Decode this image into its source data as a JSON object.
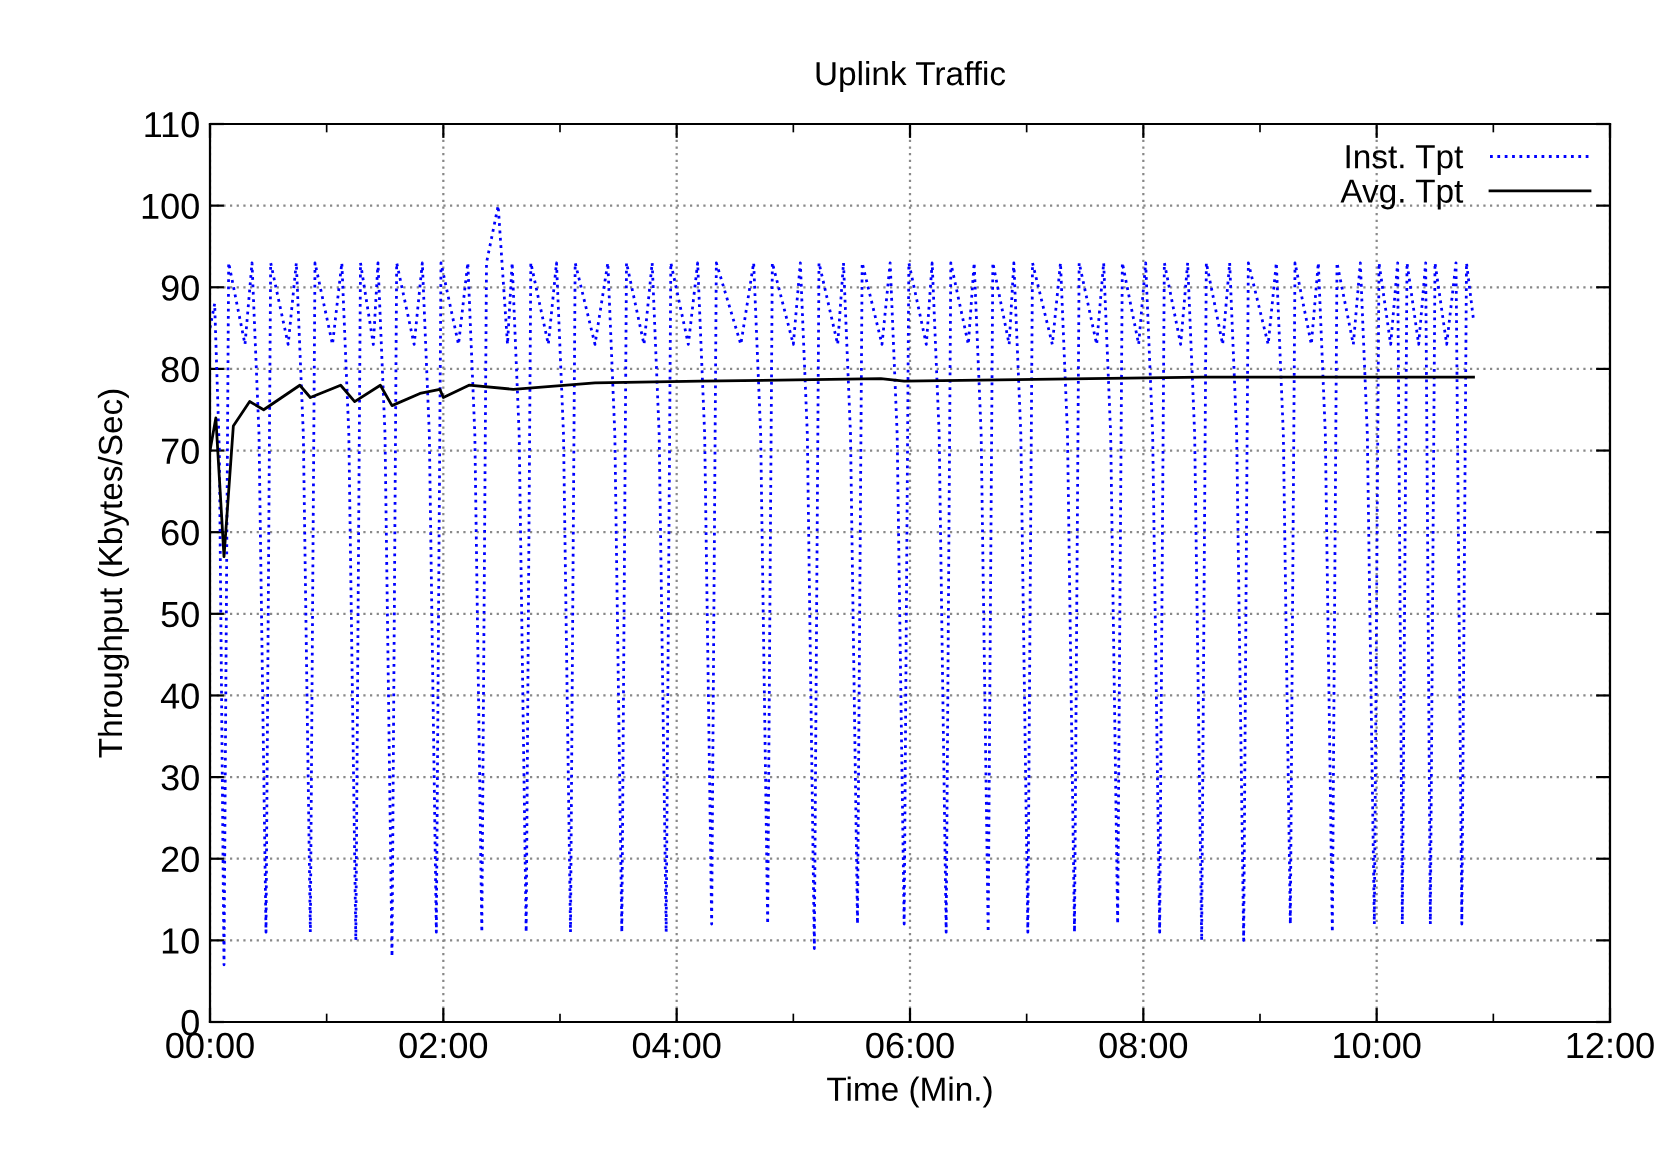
{
  "chart_data": {
    "type": "line",
    "title": "Uplink Traffic",
    "xlabel": "Time (Min.)",
    "ylabel": "Throughput (Kbytes/Sec)",
    "xlim": [
      0,
      12
    ],
    "ylim": [
      0,
      110
    ],
    "xticks": [
      {
        "value": 0,
        "label": "00:00"
      },
      {
        "value": 1,
        "label": null
      },
      {
        "value": 2,
        "label": "02:00"
      },
      {
        "value": 3,
        "label": null
      },
      {
        "value": 4,
        "label": "04:00"
      },
      {
        "value": 5,
        "label": null
      },
      {
        "value": 6,
        "label": "06:00"
      },
      {
        "value": 7,
        "label": null
      },
      {
        "value": 8,
        "label": "08:00"
      },
      {
        "value": 9,
        "label": null
      },
      {
        "value": 10,
        "label": "10:00"
      },
      {
        "value": 11,
        "label": null
      },
      {
        "value": 12,
        "label": "12:00"
      }
    ],
    "yticks": [
      0,
      10,
      20,
      30,
      40,
      50,
      60,
      70,
      80,
      90,
      100,
      110
    ],
    "grid": true,
    "legend": "top right",
    "series": [
      {
        "name": "Inst. Tpt",
        "color": "#0000ff",
        "line_style": "dotted",
        "x": [
          0,
          0.04,
          0.08,
          0.12,
          0.16,
          0.3,
          0.36,
          0.42,
          0.48,
          0.52,
          0.67,
          0.74,
          0.8,
          0.86,
          0.9,
          1.05,
          1.13,
          1.19,
          1.25,
          1.29,
          1.4,
          1.44,
          1.5,
          1.56,
          1.6,
          1.75,
          1.82,
          1.88,
          1.94,
          1.98,
          2.13,
          2.21,
          2.27,
          2.33,
          2.37,
          2.47,
          2.55,
          2.59,
          2.65,
          2.71,
          2.75,
          2.9,
          2.97,
          3.03,
          3.09,
          3.13,
          3.3,
          3.41,
          3.47,
          3.53,
          3.57,
          3.72,
          3.79,
          3.85,
          3.91,
          3.95,
          4.1,
          4.18,
          4.24,
          4.3,
          4.34,
          4.55,
          4.66,
          4.72,
          4.78,
          4.82,
          5.0,
          5.06,
          5.12,
          5.18,
          5.22,
          5.38,
          5.43,
          5.49,
          5.55,
          5.59,
          5.76,
          5.83,
          5.89,
          5.95,
          5.99,
          6.14,
          6.19,
          6.25,
          6.31,
          6.35,
          6.5,
          6.55,
          6.61,
          6.67,
          6.71,
          6.85,
          6.89,
          6.95,
          7.01,
          7.05,
          7.22,
          7.29,
          7.35,
          7.41,
          7.45,
          7.6,
          7.66,
          7.72,
          7.78,
          7.82,
          7.96,
          8.02,
          8.08,
          8.14,
          8.18,
          8.32,
          8.38,
          8.44,
          8.5,
          8.54,
          8.68,
          8.74,
          8.8,
          8.86,
          8.9,
          9.07,
          9.14,
          9.2,
          9.26,
          9.3,
          9.44,
          9.5,
          9.56,
          9.62,
          9.66,
          9.8,
          9.86,
          9.92,
          9.98,
          10.02,
          10.12,
          10.18,
          10.22,
          10.26,
          10.36,
          10.42,
          10.46,
          10.5,
          10.6,
          10.68,
          10.73,
          10.77,
          10.83
        ],
        "values": [
          85,
          88,
          70,
          7,
          93,
          83,
          93,
          72,
          11,
          93,
          83,
          93,
          72,
          11,
          93,
          83,
          93,
          72,
          10,
          93,
          83,
          93,
          72,
          8,
          93,
          83,
          93,
          72,
          11,
          93,
          83,
          93,
          72,
          11,
          93,
          100,
          83,
          93,
          72,
          11,
          93,
          83,
          93,
          72,
          11,
          93,
          83,
          93,
          72,
          11,
          93,
          83,
          93,
          72,
          11,
          93,
          83,
          93,
          72,
          12,
          93,
          83,
          93,
          72,
          12,
          93,
          83,
          93,
          72,
          9,
          93,
          83,
          93,
          72,
          12,
          93,
          83,
          93,
          72,
          12,
          93,
          83,
          93,
          72,
          11,
          93,
          83,
          93,
          72,
          11,
          93,
          83,
          93,
          72,
          11,
          93,
          83,
          93,
          72,
          11,
          93,
          83,
          93,
          72,
          12,
          93,
          83,
          93,
          72,
          11,
          93,
          83,
          93,
          72,
          10,
          93,
          83,
          93,
          72,
          10,
          93,
          83,
          93,
          72,
          12,
          93,
          83,
          93,
          72,
          11,
          93,
          83,
          93,
          72,
          12,
          93,
          83,
          93,
          12,
          93,
          83,
          93,
          12,
          93,
          83,
          93,
          12,
          93,
          86
        ]
      },
      {
        "name": "Avg. Tpt",
        "color": "#000000",
        "line_style": "solid",
        "x": [
          0,
          0.05,
          0.12,
          0.2,
          0.34,
          0.46,
          0.77,
          0.86,
          1.12,
          1.24,
          1.46,
          1.56,
          1.8,
          1.97,
          2.0,
          2.22,
          2.6,
          3.3,
          4.2,
          5.75,
          5.95,
          8.5,
          10.83
        ],
        "values": [
          70,
          74,
          57,
          73,
          76,
          75,
          78,
          76.5,
          78,
          76,
          78,
          75.5,
          77,
          77.5,
          76.5,
          78,
          77.5,
          78.3,
          78.5,
          78.8,
          78.5,
          79,
          79
        ]
      }
    ]
  }
}
